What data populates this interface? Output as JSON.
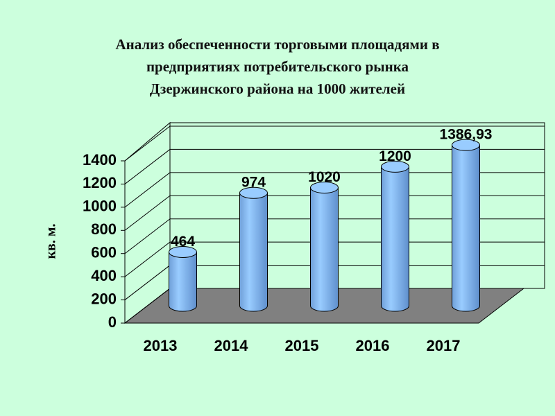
{
  "chart_data": {
    "type": "bar",
    "title": [
      "Анализ обеспеченности торговыми площадями в",
      "предприятиях потребительского рынка",
      "Дзержинского района на 1000 жителей"
    ],
    "y_label": "кв. м.",
    "categories": [
      "2013",
      "2014",
      "2015",
      "2016",
      "2017"
    ],
    "values": [
      464,
      974,
      1020,
      1200,
      1386.93
    ],
    "value_labels": [
      "464",
      "974",
      "1020",
      "1200",
      "1386,93"
    ],
    "color": "#99ccff",
    "ylim": [
      0,
      1400
    ],
    "yticks": [
      0,
      200,
      400,
      600,
      800,
      1000,
      1200,
      1400
    ],
    "grid": true
  }
}
